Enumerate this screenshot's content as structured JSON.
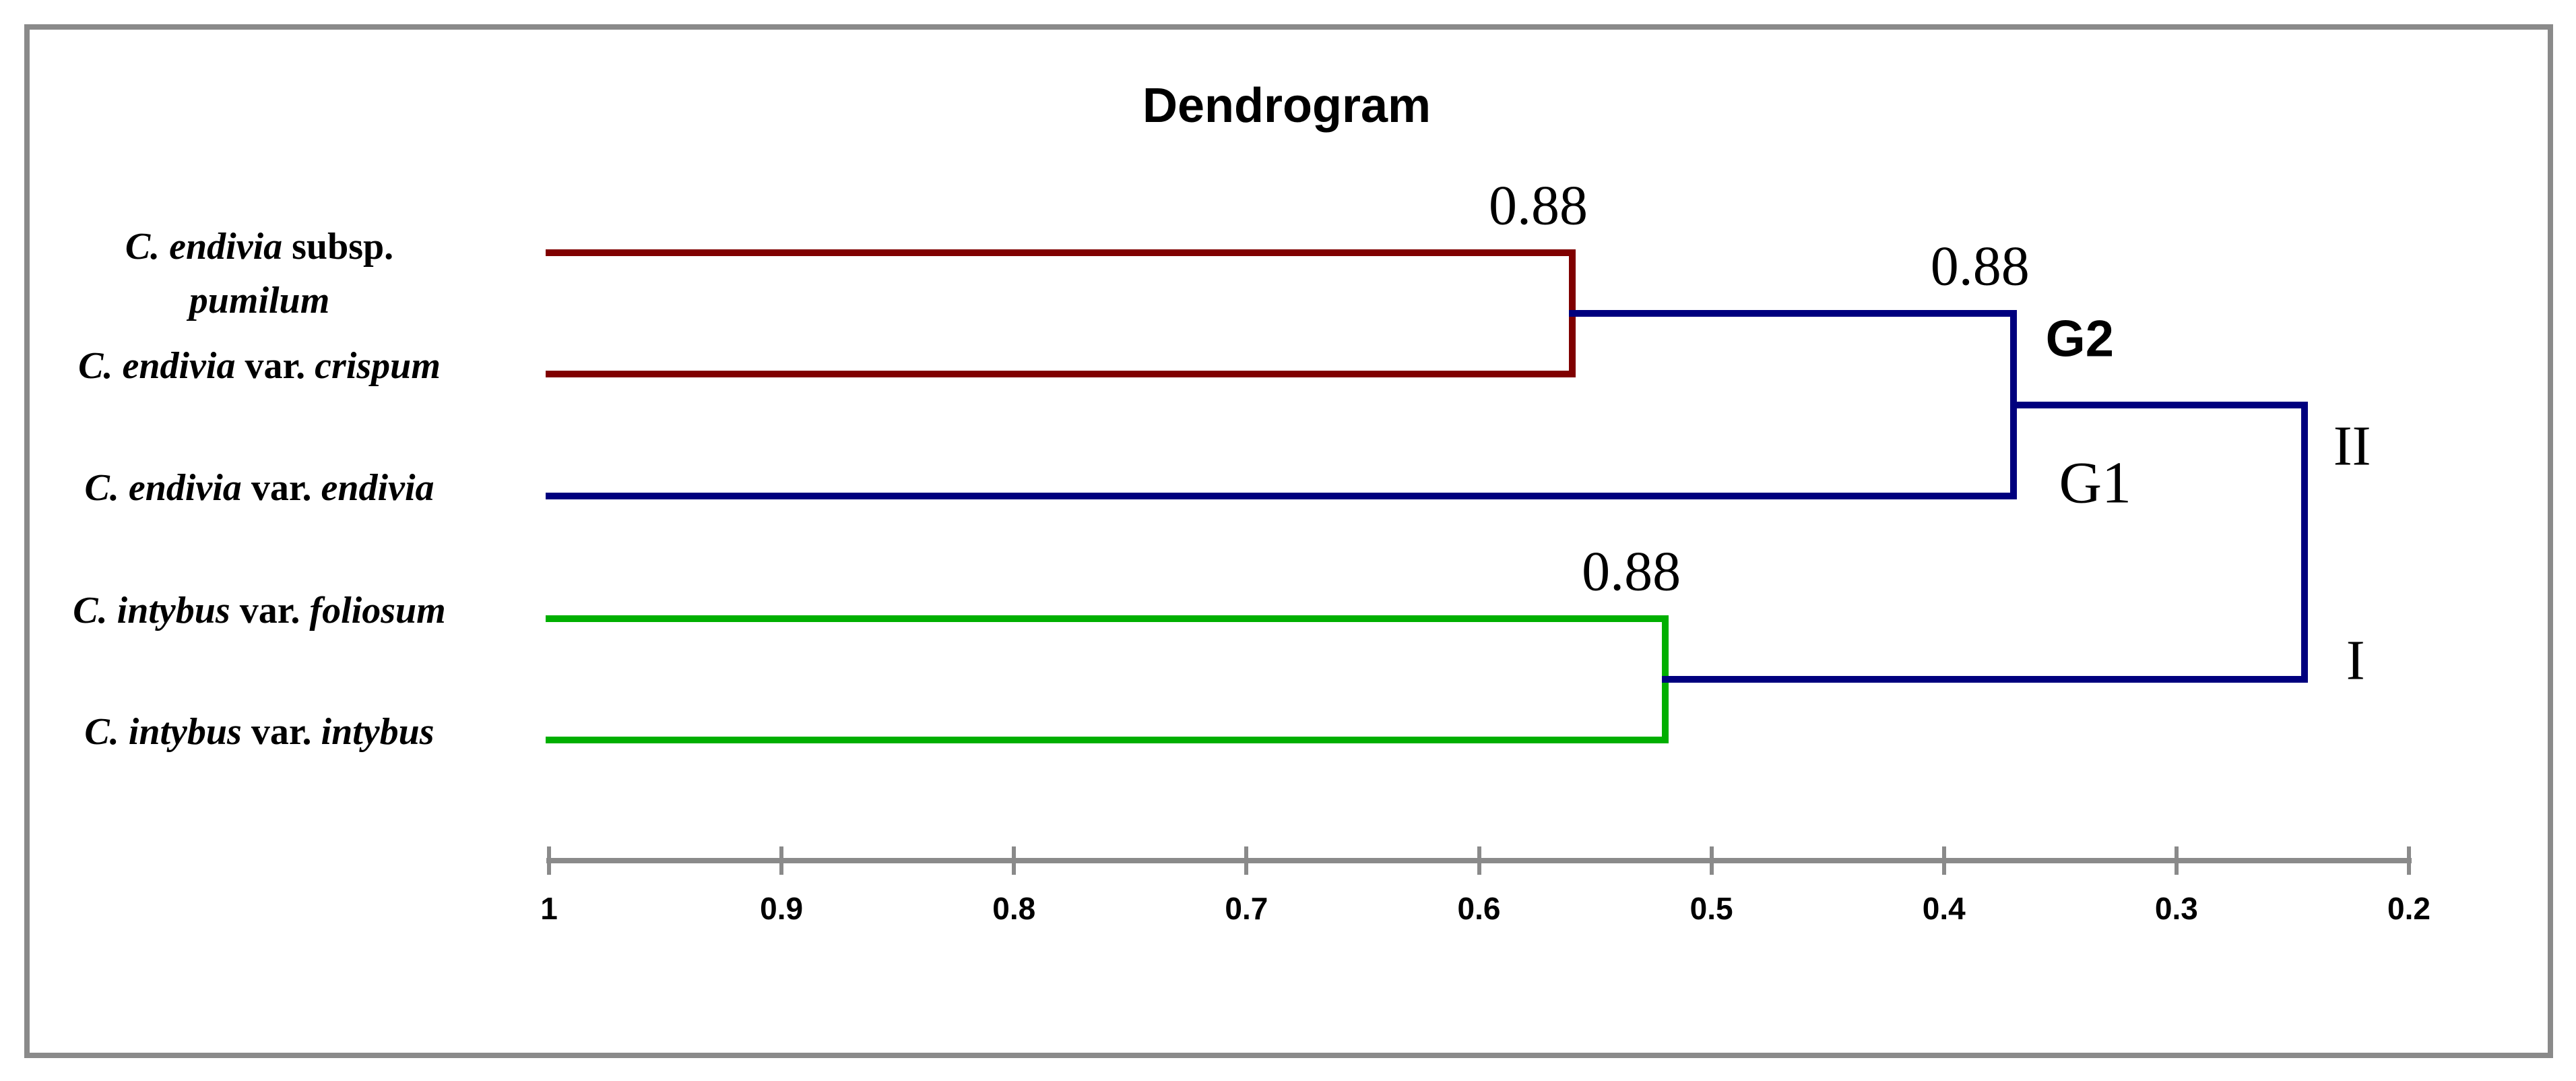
{
  "title": "Dendrogram",
  "colors": {
    "red": "#800000",
    "navy": "#00007E",
    "green": "#00AF00",
    "gray": "#8A8A8A"
  },
  "axis": {
    "orientation": "horizontal, similarity decreasing to the right",
    "tick_labels": [
      "1",
      "0.9",
      "0.8",
      "0.7",
      "0.6",
      "0.5",
      "0.4",
      "0.3",
      "0.2"
    ],
    "tick_values": [
      1.0,
      0.9,
      0.8,
      0.7,
      0.6,
      0.5,
      0.4,
      0.3,
      0.2
    ],
    "max_value": 1.0,
    "min_value": 0.2
  },
  "leaves": [
    {
      "id": "pumilum",
      "color": "red",
      "lines": [
        [
          {
            "t": "C. endivia ",
            "i": true
          },
          {
            "t": " subsp.",
            "i": false
          }
        ],
        [
          {
            "t": "pumilum",
            "i": true
          }
        ]
      ]
    },
    {
      "id": "crispum",
      "color": "red",
      "lines": [
        [
          {
            "t": "C. endivia ",
            "i": true
          },
          {
            "t": " var. ",
            "i": false
          },
          {
            "t": "crispum",
            "i": true
          }
        ]
      ]
    },
    {
      "id": "endivia",
      "color": "navy",
      "lines": [
        [
          {
            "t": "C. endivia ",
            "i": true
          },
          {
            "t": " var. ",
            "i": false
          },
          {
            "t": "endivia",
            "i": true
          }
        ]
      ]
    },
    {
      "id": "foliosum",
      "color": "green",
      "lines": [
        [
          {
            "t": "C. intybus ",
            "i": true
          },
          {
            "t": "var. ",
            "i": false
          },
          {
            "t": "foliosum",
            "i": true
          }
        ]
      ]
    },
    {
      "id": "intybus",
      "color": "green",
      "lines": [
        [
          {
            "t": "C. intybus ",
            "i": true
          },
          {
            "t": " var. ",
            "i": false
          },
          {
            "t": "intybus",
            "i": true
          }
        ]
      ]
    }
  ],
  "chart_data": {
    "type": "dendrogram",
    "title": "Dendrogram",
    "axis_range": [
      1.0,
      0.2
    ],
    "leaves": [
      "C. endivia subsp. pumilum",
      "C. endivia var. crispum",
      "C. endivia var. endivia",
      "C. intybus var. foliosum",
      "C. intybus var. intybus"
    ],
    "merges": [
      {
        "id": "red-cluster",
        "children": [
          "pumilum",
          "crispum"
        ],
        "join_similarity": 0.56,
        "color": "red",
        "support_label": "0.88"
      },
      {
        "id": "G",
        "children": [
          "red-cluster",
          "endivia"
        ],
        "join_similarity": 0.37,
        "color": "navy",
        "support_label": "0.88",
        "upper_branch_label": "G2",
        "lower_branch_label": "G1"
      },
      {
        "id": "green-cluster",
        "children": [
          "foliosum",
          "intybus"
        ],
        "join_similarity": 0.52,
        "color": "green",
        "support_label": "0.88"
      },
      {
        "id": "root",
        "children": [
          "G",
          "green-cluster"
        ],
        "join_similarity": 0.245,
        "color": "navy",
        "upper_branch_label": "II",
        "lower_branch_label": "I"
      }
    ]
  }
}
